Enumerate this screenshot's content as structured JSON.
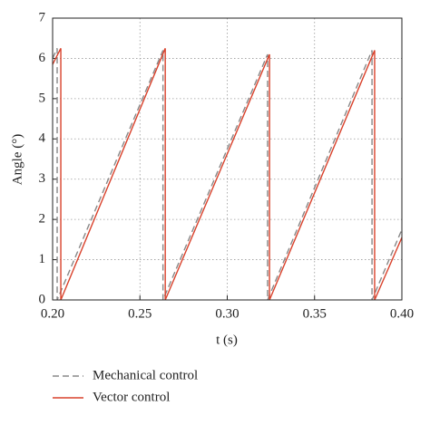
{
  "chart_data": {
    "type": "line",
    "x_label": "t (s)",
    "y_label": "Angle (°)",
    "xlim": [
      0.2,
      0.4
    ],
    "xticks": [
      {
        "value": 0.2,
        "label": "0.20"
      },
      {
        "value": 0.25,
        "label": "0.25"
      },
      {
        "value": 0.3,
        "label": "0.30"
      },
      {
        "value": 0.35,
        "label": "0.35"
      },
      {
        "value": 0.4,
        "label": "0.40"
      }
    ],
    "ylim": [
      0,
      7
    ],
    "yticks": [
      0,
      1,
      2,
      3,
      4,
      5,
      6,
      7
    ],
    "grid": true,
    "series": [
      {
        "name": "Mechanical control",
        "color": "#888888",
        "style": "dashed",
        "x": [
          0.2,
          0.2026,
          0.2026,
          0.2632,
          0.2632,
          0.3231,
          0.3231,
          0.3829,
          0.3829,
          0.4
        ],
        "values": [
          6.0,
          6.25,
          0,
          6.2,
          0,
          6.1,
          0,
          6.2,
          0,
          1.75
        ]
      },
      {
        "name": "Vector control",
        "color": "#d9412b",
        "style": "solid",
        "x": [
          0.2,
          0.2047,
          0.2047,
          0.2645,
          0.2645,
          0.3242,
          0.3242,
          0.3844,
          0.3844,
          0.4
        ],
        "values": [
          5.85,
          6.25,
          0,
          6.25,
          0,
          6.1,
          0,
          6.2,
          0,
          1.55
        ]
      }
    ]
  }
}
